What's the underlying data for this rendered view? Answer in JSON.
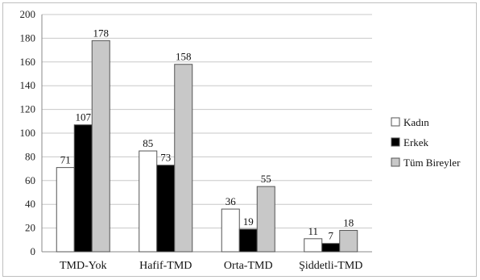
{
  "chart_data": {
    "type": "bar",
    "categories": [
      "TMD-Yok",
      "Hafif-TMD",
      "Orta-TMD",
      "Şiddetli-TMD"
    ],
    "series": [
      {
        "name": "Kadın",
        "values": [
          71,
          85,
          36,
          11
        ],
        "color": "#ffffff"
      },
      {
        "name": "Erkek",
        "values": [
          107,
          73,
          19,
          7
        ],
        "color": "#000000"
      },
      {
        "name": "Tüm Bireyler",
        "values": [
          178,
          158,
          55,
          18
        ],
        "color": "#c8c8c8"
      }
    ],
    "ylim": [
      0,
      200
    ],
    "yticks": [
      0,
      20,
      40,
      60,
      80,
      100,
      120,
      140,
      160,
      180,
      200
    ],
    "grid": true,
    "legend": "right"
  }
}
